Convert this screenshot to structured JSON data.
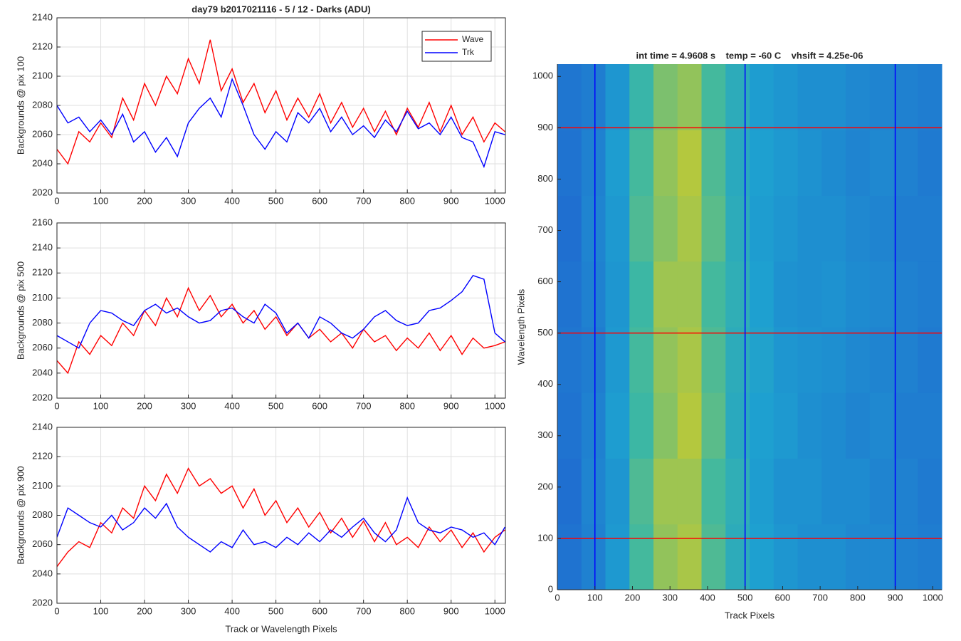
{
  "chart_data": [
    {
      "type": "line",
      "title": "day79 b2017021116 - 5 / 12 - Darks (ADU)",
      "ylabel": "Backgrounds @ pix 100",
      "x": [
        0,
        25,
        50,
        75,
        100,
        125,
        150,
        175,
        200,
        225,
        250,
        275,
        300,
        325,
        350,
        375,
        400,
        425,
        450,
        475,
        500,
        525,
        550,
        575,
        600,
        625,
        650,
        675,
        700,
        725,
        750,
        775,
        800,
        825,
        850,
        875,
        900,
        925,
        950,
        975,
        1000,
        1023
      ],
      "series": [
        {
          "name": "Wave",
          "color": "#ff0000",
          "values": [
            2050,
            2040,
            2062,
            2055,
            2068,
            2058,
            2085,
            2070,
            2095,
            2080,
            2100,
            2088,
            2112,
            2095,
            2125,
            2090,
            2105,
            2082,
            2095,
            2075,
            2090,
            2070,
            2085,
            2072,
            2088,
            2068,
            2082,
            2065,
            2078,
            2062,
            2076,
            2060,
            2078,
            2065,
            2082,
            2062,
            2080,
            2060,
            2072,
            2055,
            2068,
            2062
          ]
        },
        {
          "name": "Trk",
          "color": "#0000ff",
          "values": [
            2080,
            2068,
            2072,
            2062,
            2070,
            2060,
            2074,
            2055,
            2062,
            2048,
            2058,
            2045,
            2068,
            2078,
            2085,
            2072,
            2098,
            2080,
            2060,
            2050,
            2062,
            2055,
            2075,
            2068,
            2078,
            2062,
            2072,
            2060,
            2066,
            2058,
            2070,
            2062,
            2076,
            2064,
            2068,
            2060,
            2072,
            2058,
            2055,
            2038,
            2062,
            2060
          ]
        }
      ],
      "xlim": [
        0,
        1024
      ],
      "xticks": [
        0,
        100,
        200,
        300,
        400,
        500,
        600,
        700,
        800,
        900,
        1000
      ],
      "ylim": [
        2020,
        2140
      ],
      "yticks": [
        2020,
        2040,
        2060,
        2080,
        2100,
        2120,
        2140
      ],
      "grid": true,
      "legend": "upper-right"
    },
    {
      "type": "line",
      "ylabel": "Backgrounds @ pix 500",
      "x": [
        0,
        25,
        50,
        75,
        100,
        125,
        150,
        175,
        200,
        225,
        250,
        275,
        300,
        325,
        350,
        375,
        400,
        425,
        450,
        475,
        500,
        525,
        550,
        575,
        600,
        625,
        650,
        675,
        700,
        725,
        750,
        775,
        800,
        825,
        850,
        875,
        900,
        925,
        950,
        975,
        1000,
        1023
      ],
      "series": [
        {
          "color": "#ff0000",
          "values": [
            2050,
            2040,
            2065,
            2055,
            2070,
            2062,
            2080,
            2070,
            2090,
            2078,
            2100,
            2085,
            2108,
            2090,
            2102,
            2085,
            2095,
            2080,
            2090,
            2075,
            2085,
            2070,
            2080,
            2068,
            2075,
            2065,
            2072,
            2060,
            2075,
            2065,
            2070,
            2058,
            2068,
            2060,
            2072,
            2058,
            2070,
            2055,
            2068,
            2060,
            2062,
            2065
          ]
        },
        {
          "color": "#0000ff",
          "values": [
            2070,
            2065,
            2060,
            2080,
            2090,
            2088,
            2082,
            2078,
            2090,
            2095,
            2088,
            2092,
            2085,
            2080,
            2082,
            2090,
            2092,
            2085,
            2080,
            2095,
            2088,
            2072,
            2080,
            2068,
            2085,
            2080,
            2072,
            2068,
            2075,
            2085,
            2090,
            2082,
            2078,
            2080,
            2090,
            2092,
            2098,
            2105,
            2118,
            2115,
            2072,
            2065
          ]
        }
      ],
      "xlim": [
        0,
        1024
      ],
      "xticks": [
        0,
        100,
        200,
        300,
        400,
        500,
        600,
        700,
        800,
        900,
        1000
      ],
      "ylim": [
        2020,
        2160
      ],
      "yticks": [
        2020,
        2040,
        2060,
        2080,
        2100,
        2120,
        2140,
        2160
      ],
      "grid": true
    },
    {
      "type": "line",
      "ylabel": "Backgrounds @ pix 900",
      "xlabel": "Track or Wavelength Pixels",
      "x": [
        0,
        25,
        50,
        75,
        100,
        125,
        150,
        175,
        200,
        225,
        250,
        275,
        300,
        325,
        350,
        375,
        400,
        425,
        450,
        475,
        500,
        525,
        550,
        575,
        600,
        625,
        650,
        675,
        700,
        725,
        750,
        775,
        800,
        825,
        850,
        875,
        900,
        925,
        950,
        975,
        1000,
        1023
      ],
      "series": [
        {
          "color": "#ff0000",
          "values": [
            2045,
            2055,
            2062,
            2058,
            2075,
            2068,
            2085,
            2078,
            2100,
            2090,
            2108,
            2095,
            2112,
            2100,
            2105,
            2095,
            2100,
            2085,
            2098,
            2080,
            2090,
            2075,
            2085,
            2072,
            2082,
            2068,
            2078,
            2065,
            2076,
            2062,
            2075,
            2060,
            2065,
            2058,
            2072,
            2062,
            2070,
            2058,
            2068,
            2055,
            2065,
            2070
          ]
        },
        {
          "color": "#0000ff",
          "values": [
            2065,
            2085,
            2080,
            2075,
            2072,
            2080,
            2070,
            2075,
            2085,
            2078,
            2088,
            2072,
            2065,
            2060,
            2055,
            2062,
            2058,
            2070,
            2060,
            2062,
            2058,
            2065,
            2060,
            2068,
            2062,
            2070,
            2065,
            2072,
            2078,
            2068,
            2062,
            2070,
            2092,
            2075,
            2070,
            2068,
            2072,
            2070,
            2065,
            2068,
            2060,
            2072
          ]
        }
      ],
      "xlim": [
        0,
        1024
      ],
      "xticks": [
        0,
        100,
        200,
        300,
        400,
        500,
        600,
        700,
        800,
        900,
        1000
      ],
      "ylim": [
        2020,
        2140
      ],
      "yticks": [
        2020,
        2040,
        2060,
        2080,
        2100,
        2120,
        2140
      ],
      "grid": true
    },
    {
      "type": "heatmap",
      "title": "int time = 4.9608 s    temp = -60 C    vhsift = 4.25e-06",
      "xlabel": "Track Pixels",
      "ylabel": "Wavelength Pixels",
      "x": [
        0,
        64,
        128,
        192,
        256,
        320,
        384,
        448,
        512,
        576,
        640,
        704,
        768,
        832,
        896,
        960,
        1024
      ],
      "y": [
        0,
        128,
        256,
        384,
        512,
        640,
        768,
        896,
        1024
      ],
      "z": [
        [
          2062,
          2066,
          2073,
          2086,
          2093,
          2095,
          2087,
          2080,
          2075,
          2072,
          2070,
          2070,
          2068,
          2068,
          2066,
          2065
        ],
        [
          2061,
          2067,
          2072,
          2087,
          2094,
          2094,
          2086,
          2081,
          2074,
          2071,
          2071,
          2069,
          2069,
          2067,
          2066,
          2064
        ],
        [
          2062,
          2066,
          2074,
          2085,
          2092,
          2096,
          2088,
          2079,
          2075,
          2073,
          2070,
          2069,
          2067,
          2068,
          2065,
          2065
        ],
        [
          2063,
          2065,
          2073,
          2086,
          2093,
          2095,
          2087,
          2080,
          2076,
          2072,
          2071,
          2070,
          2068,
          2067,
          2066,
          2064
        ],
        [
          2062,
          2066,
          2072,
          2085,
          2094,
          2094,
          2086,
          2081,
          2075,
          2071,
          2070,
          2071,
          2069,
          2068,
          2066,
          2065
        ],
        [
          2061,
          2067,
          2073,
          2087,
          2092,
          2095,
          2088,
          2080,
          2074,
          2072,
          2070,
          2070,
          2068,
          2067,
          2065,
          2065
        ],
        [
          2062,
          2066,
          2074,
          2086,
          2093,
          2096,
          2087,
          2079,
          2075,
          2073,
          2071,
          2069,
          2067,
          2068,
          2066,
          2064
        ],
        [
          2063,
          2065,
          2072,
          2084,
          2091,
          2093,
          2086,
          2080,
          2074,
          2072,
          2070,
          2070,
          2068,
          2067,
          2066,
          2065
        ]
      ],
      "xlim": [
        0,
        1024
      ],
      "xticks": [
        0,
        100,
        200,
        300,
        400,
        500,
        600,
        700,
        800,
        900,
        1000
      ],
      "ylim": [
        0,
        1024
      ],
      "yticks": [
        0,
        100,
        200,
        300,
        400,
        500,
        600,
        700,
        800,
        900,
        1000
      ],
      "vlines": [
        100,
        500,
        900
      ],
      "vline_color": "#0000ff",
      "hlines": [
        100,
        500,
        900
      ],
      "hline_color": "#ff0000"
    }
  ]
}
